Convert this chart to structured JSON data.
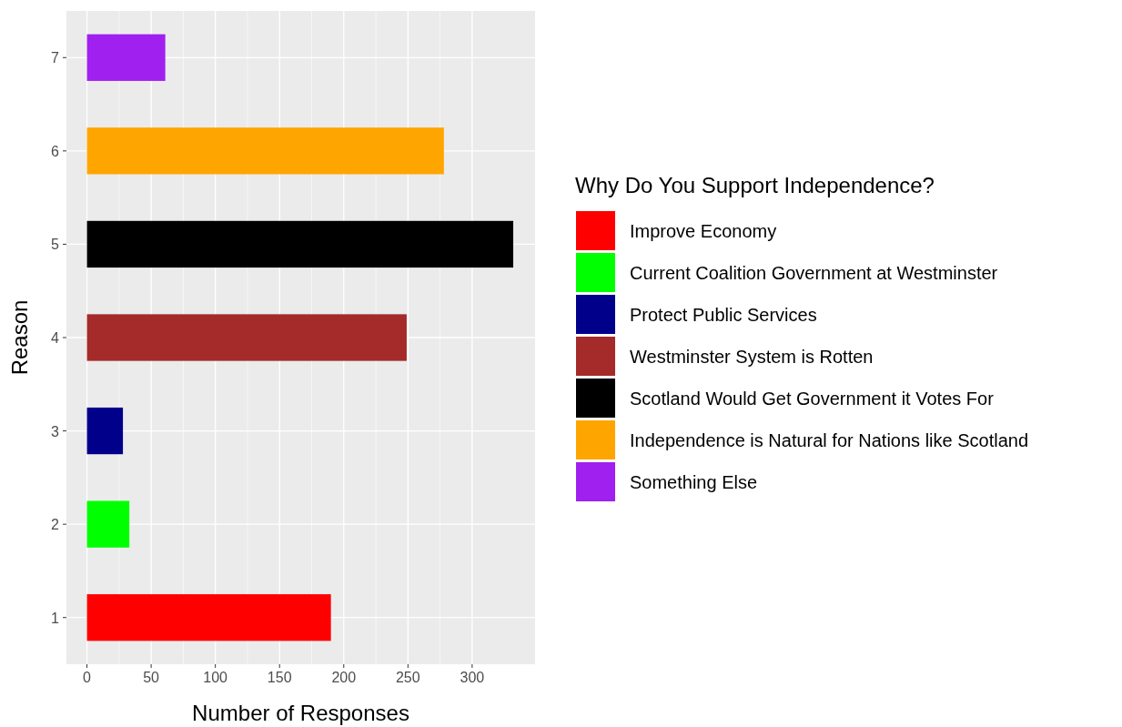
{
  "chart_data": {
    "type": "bar",
    "orientation": "horizontal",
    "xlabel": "Number of Responses",
    "ylabel": "Reason",
    "legend_title": "Why Do You Support Independence?",
    "categories": [
      "7",
      "6",
      "5",
      "4",
      "3",
      "2",
      "1"
    ],
    "series": [
      {
        "name": "Improve Economy",
        "color": "#ff0000",
        "values": [
          null,
          null,
          null,
          null,
          null,
          null,
          190
        ]
      },
      {
        "name": "Current Coalition Government at Westminster",
        "color": "#00ff00",
        "values": [
          null,
          null,
          null,
          null,
          null,
          33,
          null
        ]
      },
      {
        "name": "Protect Public Services",
        "color": "#00008b",
        "values": [
          null,
          null,
          null,
          null,
          28,
          null,
          null
        ]
      },
      {
        "name": "Westminster System is Rotten",
        "color": "#a52a2a",
        "values": [
          null,
          null,
          null,
          249,
          null,
          null,
          null
        ]
      },
      {
        "name": "Scotland Would Get Government it Votes For",
        "color": "#000000",
        "values": [
          null,
          null,
          332,
          null,
          null,
          null,
          null
        ]
      },
      {
        "name": "Independence is Natural for Nations like Scotland",
        "color": "#ffa500",
        "values": [
          null,
          278,
          null,
          null,
          null,
          null,
          null
        ]
      },
      {
        "name": "Something Else",
        "color": "#a020f0",
        "values": [
          61,
          null,
          null,
          null,
          null,
          null,
          null
        ]
      }
    ],
    "xlim": [
      -16,
      349
    ],
    "xticks": [
      0,
      50,
      100,
      150,
      200,
      250,
      300
    ],
    "grid": true,
    "legend": "right"
  }
}
